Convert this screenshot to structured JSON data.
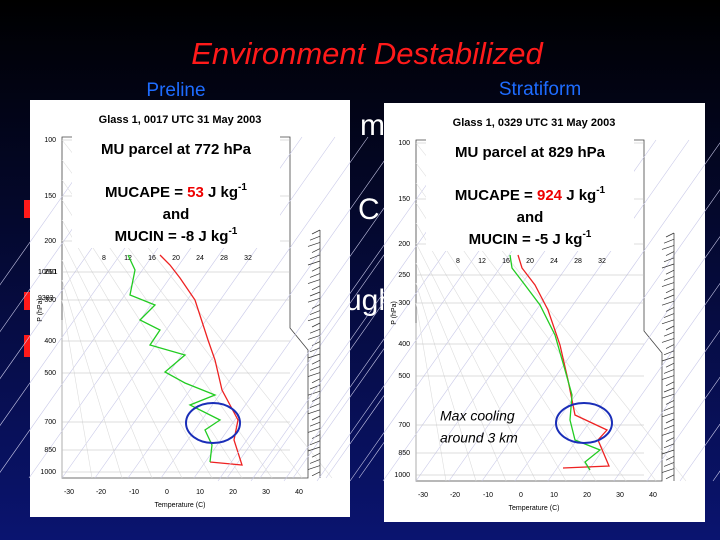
{
  "slide": {
    "title": "Environment Destabilized",
    "background_fragments": [
      "m",
      "C",
      "ugh"
    ]
  },
  "axes": {
    "pressure_ticks": [
      "100",
      "150",
      "200",
      "250",
      "300",
      "400",
      "500",
      "700",
      "850",
      "1000"
    ],
    "temperature_ticks": [
      "-30",
      "-20",
      "-10",
      "0",
      "10",
      "20",
      "30",
      "40"
    ],
    "mixing_ratios": [
      "8",
      "12",
      "16",
      "20",
      "24",
      "28",
      "32"
    ],
    "x_label": "Temperature (C)",
    "y_label": "P (hPa)"
  },
  "panels": [
    {
      "label": "Preline",
      "title": "Glass 1, 0017 UTC 31 May 2003",
      "parcel": "MU parcel at 772 hPa",
      "mucape": {
        "prefix": "MUCAPE =",
        "value": 53,
        "unit": "J kg",
        "exponent": "-1"
      },
      "joiner": "and",
      "mucin": {
        "prefix": "MUCIN =",
        "value": -8,
        "unit": "J kg",
        "exponent": "-1"
      },
      "heights": [
        "10601",
        "9383"
      ]
    },
    {
      "label": "Stratiform",
      "title": "Glass 1, 0329 UTC 31 May 2003",
      "parcel": "MU parcel at 829 hPa",
      "mucape": {
        "prefix": "MUCAPE =",
        "value": 924,
        "unit": "J kg",
        "exponent": "-1"
      },
      "joiner": "and",
      "mucin": {
        "prefix": "MUCIN =",
        "value": -5,
        "unit": "J kg",
        "exponent": "-1"
      },
      "annotation": [
        "Max cooling",
        "around 3 km"
      ]
    }
  ]
}
